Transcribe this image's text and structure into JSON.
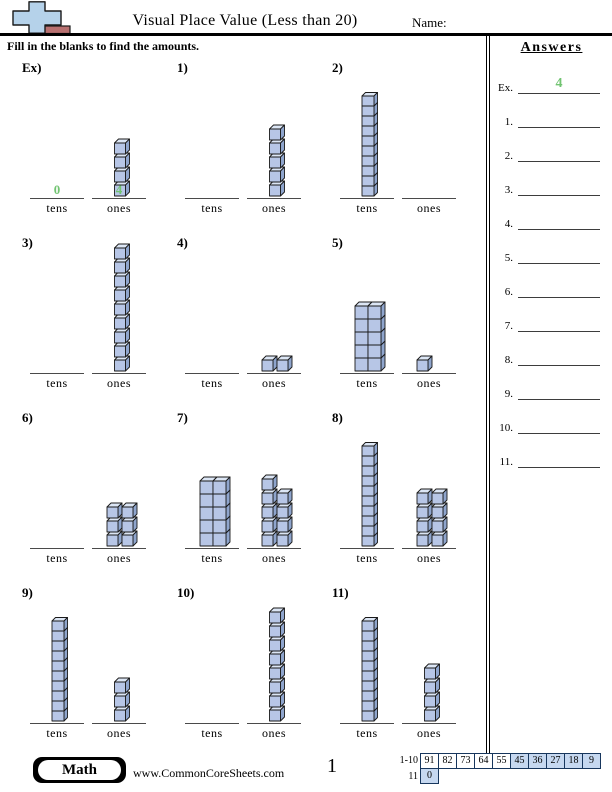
{
  "header": {
    "title": "Visual Place Value (Less than 20)",
    "name_label": "Name:",
    "instruction": "Fill in the blanks to find the amounts.",
    "logo": {
      "icon": "plus-block-icon",
      "plus_color": "#b5d2ea",
      "bar_color": "#b87070"
    }
  },
  "blank_labels": {
    "tens": "tens",
    "ones": "ones"
  },
  "problems": [
    {
      "label": "Ex)",
      "tens_style": "none",
      "tens_value": 0,
      "ones_count": 4,
      "ones_layout": "stack",
      "shown_answer": {
        "tens": "0",
        "ones": "4"
      }
    },
    {
      "label": "1)",
      "tens_style": "none",
      "tens_value": 0,
      "ones_count": 5,
      "ones_layout": "stack",
      "shown_answer": null
    },
    {
      "label": "2)",
      "tens_style": "rod",
      "tens_value": 10,
      "ones_count": 0,
      "ones_layout": "stack",
      "shown_answer": null
    },
    {
      "label": "3)",
      "tens_style": "none",
      "tens_value": 0,
      "ones_count": 9,
      "ones_layout": "stack",
      "shown_answer": null
    },
    {
      "label": "4)",
      "tens_style": "none",
      "tens_value": 0,
      "ones_count": 2,
      "ones_layout": "grid2",
      "shown_answer": null
    },
    {
      "label": "5)",
      "tens_style": "block",
      "tens_value": 10,
      "ones_count": 1,
      "ones_layout": "grid2",
      "shown_answer": null
    },
    {
      "label": "6)",
      "tens_style": "none",
      "tens_value": 0,
      "ones_count": 6,
      "ones_layout": "grid2",
      "shown_answer": null
    },
    {
      "label": "7)",
      "tens_style": "block",
      "tens_value": 10,
      "ones_count": 9,
      "ones_layout": "grid2",
      "shown_answer": null
    },
    {
      "label": "8)",
      "tens_style": "rod",
      "tens_value": 10,
      "ones_count": 8,
      "ones_layout": "grid2",
      "shown_answer": null
    },
    {
      "label": "9)",
      "tens_style": "rod",
      "tens_value": 10,
      "ones_count": 3,
      "ones_layout": "stack",
      "shown_answer": null
    },
    {
      "label": "10)",
      "tens_style": "none",
      "tens_value": 0,
      "ones_count": 8,
      "ones_layout": "stack",
      "shown_answer": null
    },
    {
      "label": "11)",
      "tens_style": "rod",
      "tens_value": 10,
      "ones_count": 4,
      "ones_layout": "stack",
      "shown_answer": null
    }
  ],
  "answers": {
    "title": "Answers",
    "rows": [
      {
        "label": "Ex.",
        "value": "4"
      },
      {
        "label": "1.",
        "value": ""
      },
      {
        "label": "2.",
        "value": ""
      },
      {
        "label": "3.",
        "value": ""
      },
      {
        "label": "4.",
        "value": ""
      },
      {
        "label": "5.",
        "value": ""
      },
      {
        "label": "6.",
        "value": ""
      },
      {
        "label": "7.",
        "value": ""
      },
      {
        "label": "8.",
        "value": ""
      },
      {
        "label": "9.",
        "value": ""
      },
      {
        "label": "10.",
        "value": ""
      },
      {
        "label": "11.",
        "value": ""
      }
    ]
  },
  "footer": {
    "badge": "Math",
    "website": "www.CommonCoreSheets.com",
    "page_number": "1",
    "score_table": {
      "row1_label": "1-10",
      "row1_values": [
        "91",
        "82",
        "73",
        "64",
        "55",
        "45",
        "36",
        "27",
        "18",
        "9"
      ],
      "row1_shaded": [
        false,
        false,
        false,
        false,
        false,
        true,
        true,
        true,
        true,
        true
      ],
      "row2_label": "11",
      "row2_values": [
        "0"
      ],
      "row2_shaded": [
        true
      ]
    }
  },
  "colors": {
    "answer_green": "#72c472",
    "cube_front": "#b7c6e6",
    "cube_top": "#dce6f5",
    "cube_side": "#8fa5cd",
    "cube_stroke": "#1a1a1a",
    "table_fill": "#c6d8f0",
    "table_border": "#17365d"
  }
}
